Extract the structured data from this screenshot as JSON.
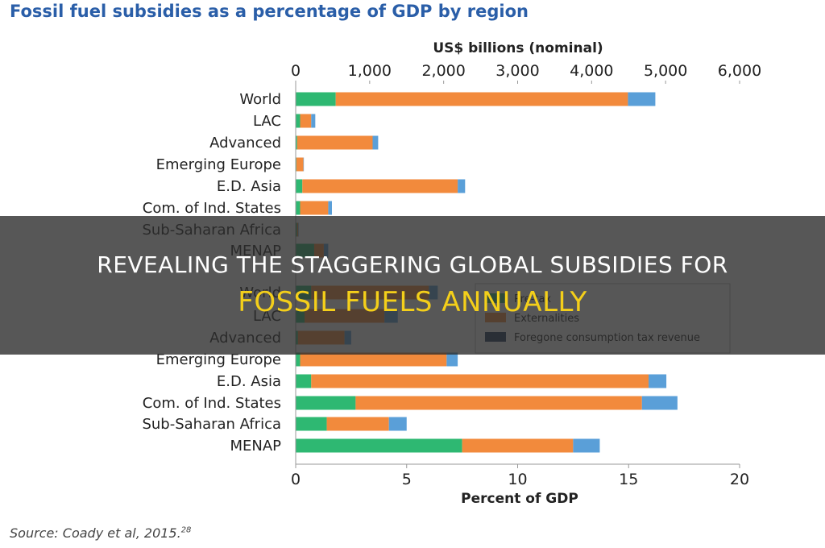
{
  "headline": {
    "line1": "Revealing The Staggering Global Subsidies For",
    "line2": "Fossil Fuels Annually"
  },
  "source": {
    "text": "Source: Coady et al, 2015.",
    "superscript": "28"
  },
  "colors": {
    "pre_tax": "#2eb872",
    "externalities": "#f28a3c",
    "foregone": "#5a9fd8",
    "legend_foregone": "#1f3b5a"
  },
  "legend": {
    "placement": "right-middle",
    "items": [
      {
        "key": "pre_tax",
        "label": "Pre-tax"
      },
      {
        "key": "externalities",
        "label": "Externalities"
      },
      {
        "key": "foregone",
        "label": "Foregone consumption tax revenue"
      }
    ]
  },
  "chart_data": [
    {
      "type": "bar",
      "orientation": "horizontal",
      "stacked": true,
      "title": "Fossil fuel subsidies as a percentage of GDP by region",
      "xlabel": "US$ billions (nominal)",
      "xlim": [
        0,
        6000
      ],
      "ticks": [
        "0",
        "1,000",
        "2,000",
        "3,000",
        "4,000",
        "5,000",
        "6,000"
      ],
      "categories": [
        "World",
        "LAC",
        "Advanced",
        "Emerging Europe",
        "E.D. Asia",
        "Com. of Ind. States",
        "Sub-Saharan Africa",
        "MENAP"
      ],
      "series": [
        {
          "name": "Pre-tax",
          "key": "pre_tax",
          "values": [
            541,
            60,
            20,
            10,
            90,
            60,
            20,
            250
          ]
        },
        {
          "name": "Externalities",
          "key": "externalities",
          "values": [
            3950,
            150,
            1020,
            95,
            2100,
            380,
            15,
            130
          ]
        },
        {
          "name": "Foregone consumption tax revenue",
          "key": "foregone",
          "values": [
            370,
            55,
            75,
            5,
            100,
            50,
            5,
            60
          ]
        }
      ]
    },
    {
      "type": "bar",
      "orientation": "horizontal",
      "stacked": true,
      "title": "",
      "xlabel": "Percent of GDP",
      "xlim": [
        0,
        20
      ],
      "ticks": [
        "0",
        "5",
        "10",
        "15",
        "20"
      ],
      "categories": [
        "World",
        "LAC",
        "Advanced",
        "Emerging Europe",
        "E.D. Asia",
        "Com. of Ind. States",
        "Sub-Saharan Africa",
        "MENAP"
      ],
      "series": [
        {
          "name": "Pre-tax",
          "key": "pre_tax",
          "values": [
            0.7,
            0.4,
            0.1,
            0.2,
            0.7,
            2.7,
            1.4,
            7.5
          ]
        },
        {
          "name": "Externalities",
          "key": "externalities",
          "values": [
            5.3,
            3.6,
            2.1,
            6.6,
            15.2,
            12.9,
            2.8,
            5.0
          ]
        },
        {
          "name": "Foregone consumption tax revenue",
          "key": "foregone",
          "values": [
            0.4,
            0.6,
            0.3,
            0.5,
            0.8,
            1.6,
            0.8,
            1.2
          ]
        }
      ]
    }
  ]
}
